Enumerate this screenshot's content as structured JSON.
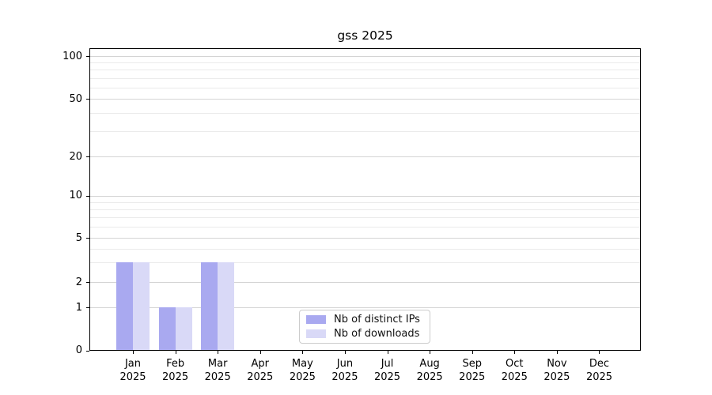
{
  "title": "gss 2025",
  "chart_data": {
    "type": "bar",
    "title": "gss 2025",
    "categories": [
      "Jan 2025",
      "Feb 2025",
      "Mar 2025",
      "Apr 2025",
      "May 2025",
      "Jun 2025",
      "Jul 2025",
      "Aug 2025",
      "Sep 2025",
      "Oct 2025",
      "Nov 2025",
      "Dec 2025"
    ],
    "x_months": [
      "Jan",
      "Feb",
      "Mar",
      "Apr",
      "May",
      "Jun",
      "Jul",
      "Aug",
      "Sep",
      "Oct",
      "Nov",
      "Dec"
    ],
    "x_year": "2025",
    "series": [
      {
        "name": "Nb of distinct IPs",
        "color": "#a9a9f0",
        "values": [
          3,
          1,
          3,
          null,
          null,
          null,
          null,
          null,
          null,
          null,
          null,
          null
        ]
      },
      {
        "name": "Nb of downloads",
        "color": "#d9d9f7",
        "values": [
          3,
          1,
          3,
          null,
          null,
          null,
          null,
          null,
          null,
          null,
          null,
          null
        ]
      }
    ],
    "yticks": [
      0,
      1,
      2,
      5,
      10,
      20,
      50,
      100
    ],
    "ylim": [
      0,
      110
    ],
    "xlabel": "",
    "ylabel": "",
    "yscale": "symlog",
    "grid": "horizontal major and minor, light gray",
    "legend_position": "lower center inside axes"
  },
  "legend": {
    "items": [
      {
        "label": "Nb of distinct IPs",
        "color": "#a9a9f0"
      },
      {
        "label": "Nb of downloads",
        "color": "#d9d9f7"
      }
    ]
  },
  "colors": {
    "bar_distinct_ips": "#a9a9f0",
    "bar_downloads": "#d9d9f7",
    "grid_major": "#d4d4d4",
    "grid_minor": "#ebebeb",
    "axis": "#000000",
    "legend_border": "#cccccc",
    "background": "#ffffff"
  }
}
